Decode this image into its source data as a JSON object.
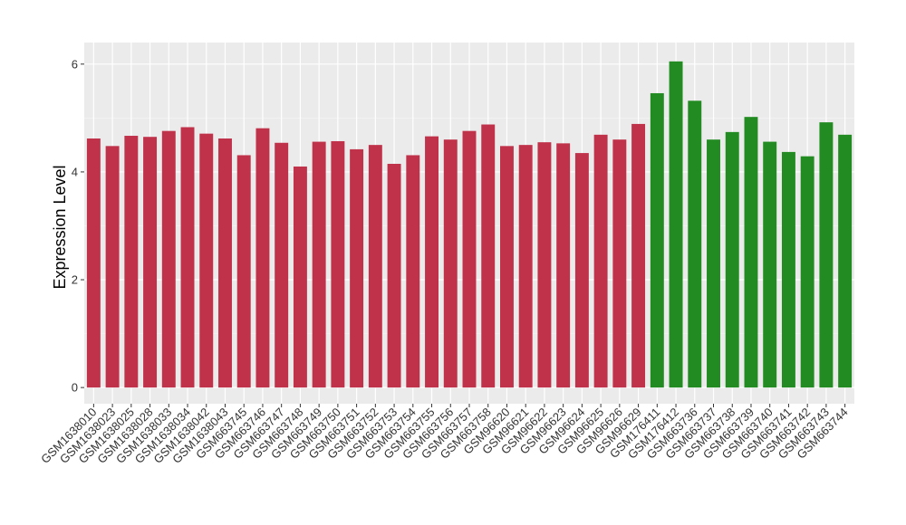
{
  "chart_data": {
    "type": "bar",
    "ylabel": "Expression Level",
    "xlabel": "",
    "ylim": [
      -0.3,
      6.4
    ],
    "yticks": [
      0,
      2,
      4,
      6
    ],
    "grid": true,
    "colors": {
      "group_a": "#c0314a",
      "group_b": "#228b22",
      "panel": "#ebebeb",
      "grid": "#ffffff"
    },
    "categories": [
      "GSM1638010",
      "GSM1638023",
      "GSM1638025",
      "GSM1638028",
      "GSM1638033",
      "GSM1638034",
      "GSM1638042",
      "GSM1638043",
      "GSM663745",
      "GSM663746",
      "GSM663747",
      "GSM663748",
      "GSM663749",
      "GSM663750",
      "GSM663751",
      "GSM663752",
      "GSM663753",
      "GSM663754",
      "GSM663755",
      "GSM663756",
      "GSM663757",
      "GSM663758",
      "GSM96620",
      "GSM96621",
      "GSM96622",
      "GSM96623",
      "GSM96624",
      "GSM96625",
      "GSM96626",
      "GSM96629",
      "GSM176411",
      "GSM176412",
      "GSM663736",
      "GSM663737",
      "GSM663738",
      "GSM663739",
      "GSM663740",
      "GSM663741",
      "GSM663742",
      "GSM663743",
      "GSM663744"
    ],
    "values": [
      4.62,
      4.48,
      4.67,
      4.65,
      4.76,
      4.83,
      4.71,
      4.62,
      4.31,
      4.81,
      4.54,
      4.1,
      4.56,
      4.57,
      4.42,
      4.5,
      4.15,
      4.31,
      4.66,
      4.6,
      4.76,
      4.88,
      4.48,
      4.5,
      4.55,
      4.53,
      4.35,
      4.69,
      4.6,
      4.89,
      5.46,
      6.05,
      5.32,
      4.6,
      4.74,
      5.02,
      4.56,
      4.37,
      4.29,
      4.92,
      4.69
    ],
    "groups": [
      "a",
      "a",
      "a",
      "a",
      "a",
      "a",
      "a",
      "a",
      "a",
      "a",
      "a",
      "a",
      "a",
      "a",
      "a",
      "a",
      "a",
      "a",
      "a",
      "a",
      "a",
      "a",
      "a",
      "a",
      "a",
      "a",
      "a",
      "a",
      "a",
      "a",
      "b",
      "b",
      "b",
      "b",
      "b",
      "b",
      "b",
      "b",
      "b",
      "b",
      "b"
    ]
  }
}
